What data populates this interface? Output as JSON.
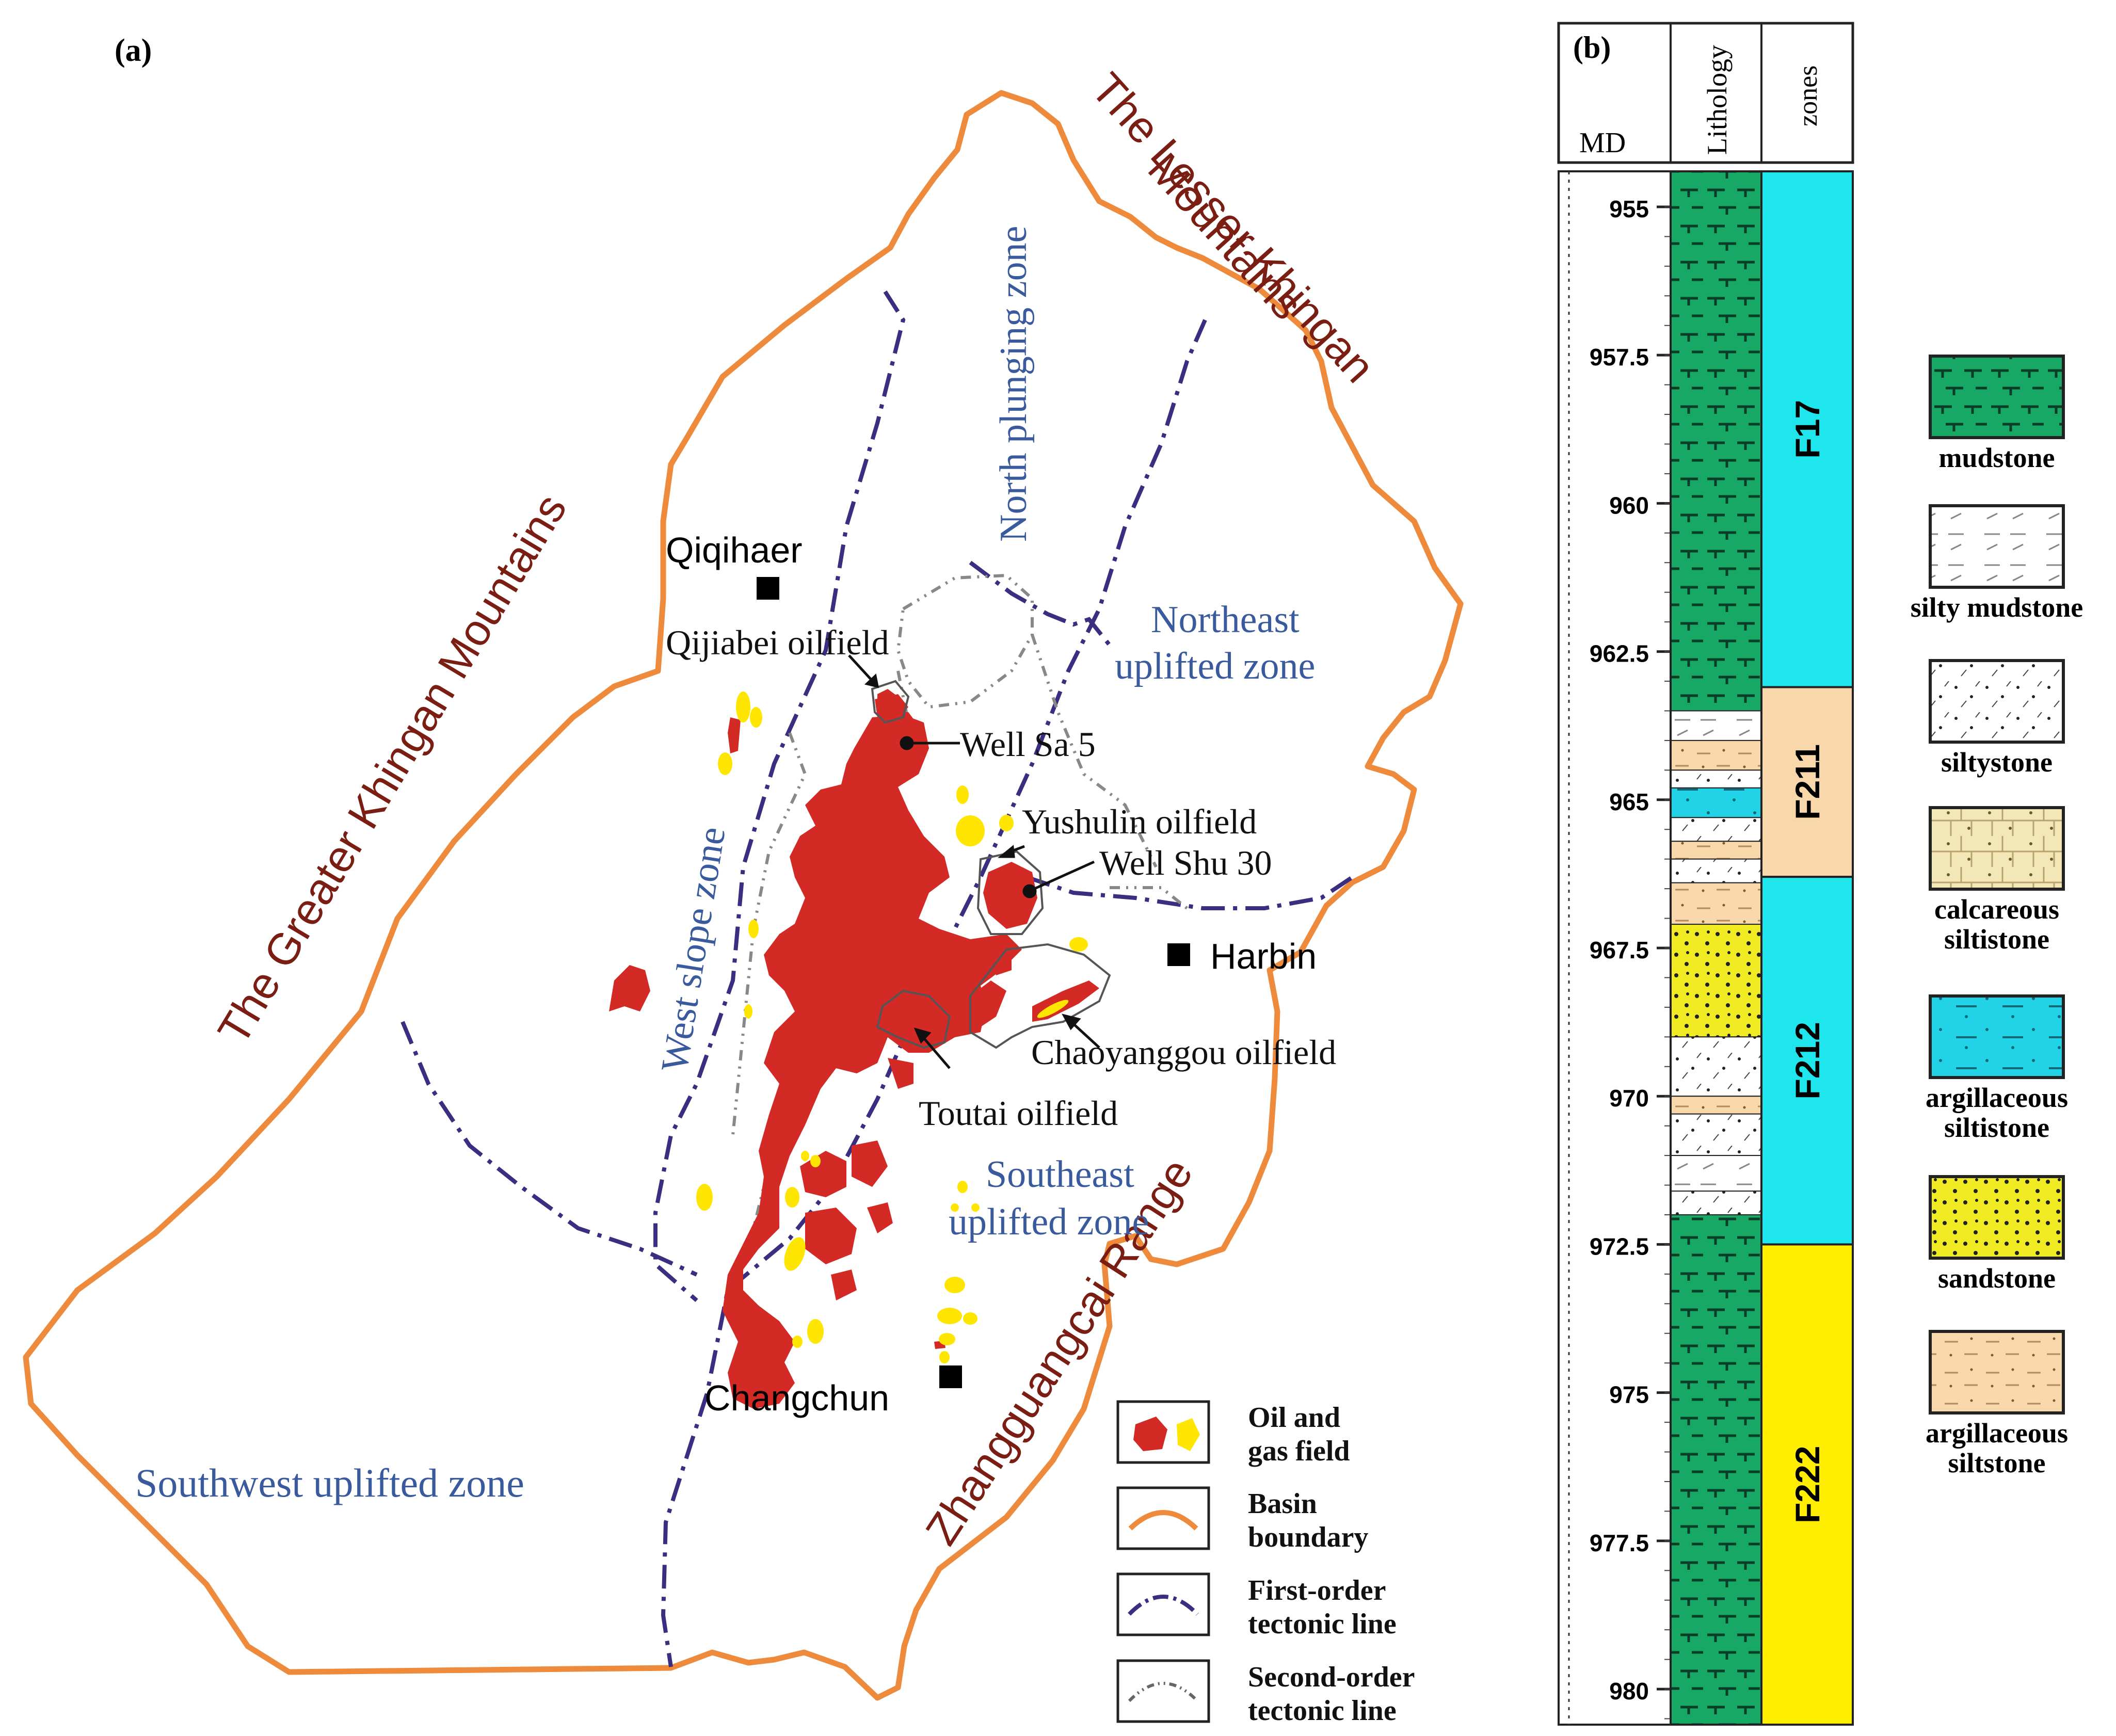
{
  "panel_a": {
    "label": "(a)",
    "mountains": {
      "lesser_khingan": [
        "The Lesser Khingan",
        "Mountains"
      ],
      "greater_khingan": "The Greater Khingan Mountains",
      "zhangguangcai": "Zhangguangcai Range"
    },
    "zones": {
      "north_plunging": "North plunging zone",
      "northeast": [
        "Northeast",
        "uplifted zone"
      ],
      "west_slope": "West slope zone",
      "southeast": [
        "Southeast",
        "uplifted zone"
      ],
      "southwest": "Southwest uplifted zone"
    },
    "cities": {
      "qiqihaer": "Qiqihaer",
      "harbin": "Harbin",
      "changchun": "Changchun"
    },
    "fields": {
      "qijiabei": "Qijiabei oilfield",
      "well_sa5": "Well Sa 5",
      "yushulin": "Yushulin oilfield",
      "well_shu30": "Well Shu 30",
      "chaoyanggou": "Chaoyanggou oilfield",
      "toutai": "Toutai oilfield"
    },
    "legend": [
      {
        "lines": [
          "Oil and",
          "gas field"
        ],
        "symbol": "oil-gas-field"
      },
      {
        "lines": [
          "Basin",
          "boundary"
        ],
        "symbol": "basin-boundary"
      },
      {
        "lines": [
          "First-order",
          "tectonic line"
        ],
        "symbol": "first-order-tectonic-line"
      },
      {
        "lines": [
          "Second-order",
          "tectonic line"
        ],
        "symbol": "second-order-tectonic-line"
      }
    ],
    "colors": {
      "oil": "#d42a25",
      "gas": "#ffe600",
      "boundary": "#ee8a3c",
      "first_order": "#3b2d80",
      "second_order": "#888888",
      "mountain_text": "#7a1e14",
      "zone_text": "#3a5a9e"
    }
  },
  "panel_b": {
    "label": "(b)",
    "headers": {
      "md": "MD",
      "lithology": "Lithology",
      "zones": "zones"
    },
    "depth_ticks": [
      "955",
      "957.5",
      "960",
      "962.5",
      "965",
      "967.5",
      "970",
      "972.5",
      "975",
      "977.5",
      "980"
    ],
    "zones": [
      {
        "name": "F17",
        "top": 954.4,
        "bottom": 963.1,
        "color": "#1fe5ec"
      },
      {
        "name": "F211",
        "top": 963.1,
        "bottom": 966.3,
        "color": "#f8d7ab"
      },
      {
        "name": "F212",
        "top": 966.3,
        "bottom": 972.5,
        "color": "#1fe5ec"
      },
      {
        "name": "F222",
        "top": 972.5,
        "bottom": 980.6,
        "color": "#ffee00"
      }
    ],
    "lithology_column": [
      {
        "type": "mudstone",
        "top": 954.4,
        "bottom": 963.5
      },
      {
        "type": "silty-mudstone",
        "top": 963.5,
        "bottom": 964.0
      },
      {
        "type": "argillaceous-siltstone",
        "top": 964.0,
        "bottom": 964.5
      },
      {
        "type": "siltystone",
        "top": 964.5,
        "bottom": 964.8
      },
      {
        "type": "argillaceous-siltstone-blue",
        "top": 964.8,
        "bottom": 965.3
      },
      {
        "type": "siltystone",
        "top": 965.3,
        "bottom": 965.7
      },
      {
        "type": "argillaceous-siltstone",
        "top": 965.7,
        "bottom": 966.0
      },
      {
        "type": "siltystone",
        "top": 966.0,
        "bottom": 966.4
      },
      {
        "type": "argillaceous-siltstone",
        "top": 966.4,
        "bottom": 967.1
      },
      {
        "type": "sandstone",
        "top": 967.1,
        "bottom": 969.0
      },
      {
        "type": "siltystone",
        "top": 969.0,
        "bottom": 970.0
      },
      {
        "type": "argillaceous-siltstone",
        "top": 970.0,
        "bottom": 970.3
      },
      {
        "type": "siltystone",
        "top": 970.3,
        "bottom": 971.0
      },
      {
        "type": "silty-mudstone",
        "top": 971.0,
        "bottom": 971.6
      },
      {
        "type": "siltystone",
        "top": 971.6,
        "bottom": 972.0
      },
      {
        "type": "mudstone",
        "top": 972.0,
        "bottom": 980.6
      }
    ],
    "lithology_colors": {
      "mudstone": "#18a866",
      "silty-mudstone": "#ffffff",
      "siltystone": "#ffffff",
      "calcareous-siltstone": "#f3e7b8",
      "argillaceous-siltstone-blue": "#22d3e8",
      "sandstone": "#f1eb23",
      "argillaceous-siltstone": "#f8d7ab"
    },
    "legend": [
      {
        "type": "mudstone",
        "lines": [
          "mudstone"
        ]
      },
      {
        "type": "silty-mudstone",
        "lines": [
          "silty mudstone"
        ]
      },
      {
        "type": "siltystone",
        "lines": [
          "siltystone"
        ]
      },
      {
        "type": "calcareous-siltstone",
        "lines": [
          "calcareous",
          "siltistone"
        ]
      },
      {
        "type": "argillaceous-siltstone-blue",
        "lines": [
          "argillaceous",
          "siltistone"
        ]
      },
      {
        "type": "sandstone",
        "lines": [
          "sandstone"
        ]
      },
      {
        "type": "argillaceous-siltstone",
        "lines": [
          "argillaceous",
          "siltstone"
        ]
      }
    ]
  }
}
